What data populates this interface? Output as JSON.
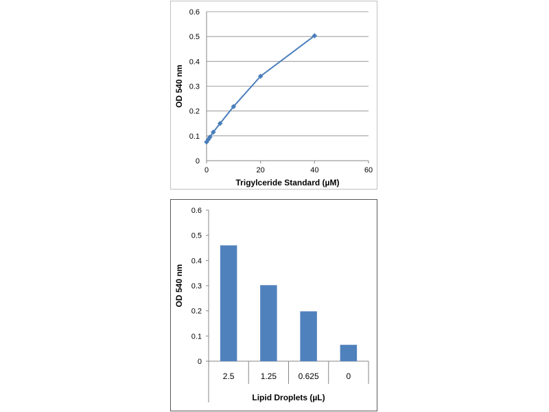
{
  "chart_data": [
    {
      "type": "line",
      "xlabel": "Trigylceride Standard (µM)",
      "ylabel": "OD 540 nm",
      "xlim": [
        0,
        60
      ],
      "ylim": [
        0,
        0.6
      ],
      "x_ticks": [
        "0",
        "20",
        "40",
        "60"
      ],
      "y_ticks": [
        "0",
        "0.1",
        "0.2",
        "0.3",
        "0.4",
        "0.5",
        "0.6"
      ],
      "grid": true,
      "color": "#4a7ebb",
      "series": [
        {
          "x": [
            0,
            0.625,
            1.25,
            2.5,
            5,
            10,
            20,
            40
          ],
          "y": [
            0.075,
            0.085,
            0.095,
            0.115,
            0.15,
            0.218,
            0.34,
            0.503
          ]
        }
      ]
    },
    {
      "type": "bar",
      "xlabel": "Lipid Droplets (µL)",
      "ylabel": "OD 540 nm",
      "ylim": [
        0,
        0.6
      ],
      "y_ticks": [
        "0",
        "0.1",
        "0.2",
        "0.3",
        "0.4",
        "0.5",
        "0.6"
      ],
      "categories": [
        "2.5",
        "1.25",
        "0.625",
        "0"
      ],
      "values": [
        0.46,
        0.302,
        0.198,
        0.065
      ],
      "grid": false,
      "color": "#4f81bd"
    }
  ]
}
